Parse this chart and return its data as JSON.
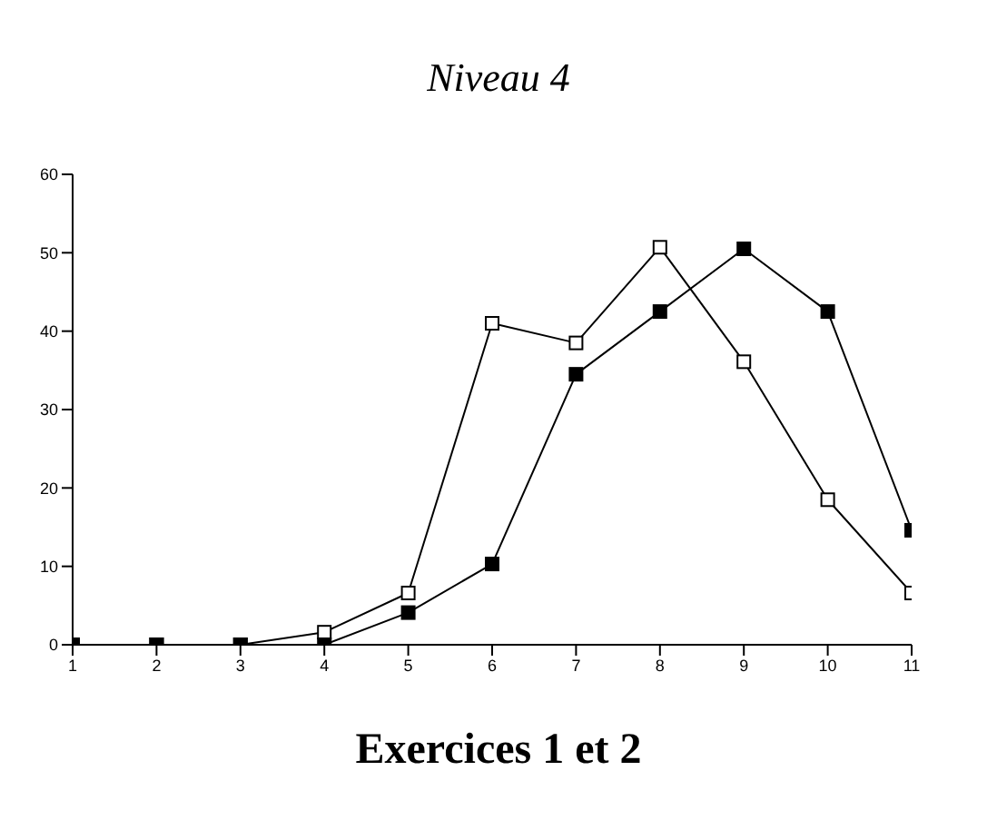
{
  "chart_data": {
    "type": "line",
    "title": "Niveau 4",
    "xlabel": "Exercices 1 et 2",
    "x": [
      1,
      2,
      3,
      4,
      5,
      6,
      7,
      8,
      9,
      10,
      11
    ],
    "series": [
      {
        "color": "#000000",
        "values": [
          0,
          0,
          0,
          1.6,
          6.6,
          41,
          38.5,
          50.7,
          36.1,
          18.5,
          6.6
        ]
      },
      {
        "color": "#000000",
        "values": [
          0,
          0,
          0,
          0,
          4.1,
          10.3,
          34.5,
          42.5,
          50.5,
          42.5,
          14.6
        ]
      }
    ],
    "xlim": [
      1,
      11
    ],
    "xticks": [
      1,
      2,
      3,
      4,
      5,
      6,
      7,
      8,
      9,
      10,
      11
    ],
    "ylim": [
      0,
      60
    ],
    "yticks": [
      0,
      10,
      20,
      30,
      40,
      50,
      60
    ],
    "grid": false,
    "legend": false,
    "marker": "square",
    "line_style": "solid"
  }
}
